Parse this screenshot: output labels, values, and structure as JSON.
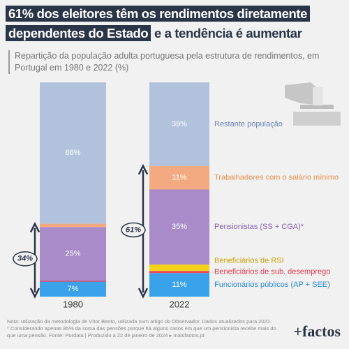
{
  "chart_data": {
    "type": "stacked-bar",
    "title": [
      "61% dos eleitores têm os rendimentos diretamente dependentes do Estado",
      "e a tendência é aumentar"
    ],
    "subtitle": "Repartição da população adulta portuguesa pela estrutura de rendimentos, em Portugal em 1980 e 2022 (%)",
    "categories": [
      "1980",
      "2022"
    ],
    "ylim": [
      0,
      100
    ],
    "series": [
      {
        "name": "Funcionários públicos (AP + SEE)",
        "color": "#3aa2ea",
        "text_color": "#2b8ad4",
        "values": [
          7,
          11
        ],
        "value_labels": [
          "7%",
          "11%"
        ]
      },
      {
        "name": "Beneficiários de sub. desemprego",
        "color": "#e8485a",
        "text_color": "#e03a4a",
        "values": [
          0.5,
          1
        ],
        "value_labels": [
          null,
          null
        ]
      },
      {
        "name": "Beneficiários de RSI",
        "color": "#f5d21a",
        "text_color": "#c9a000",
        "values": [
          0,
          3
        ],
        "value_labels": [
          null,
          null
        ]
      },
      {
        "name": "Pensionistas (SS + CGA)*",
        "color": "#a98bca",
        "text_color": "#8a5fb0",
        "values": [
          25,
          35
        ],
        "value_labels": [
          "25%",
          "35%"
        ]
      },
      {
        "name": "Trabalhadores com o salário mínimo",
        "color": "#f4aa80",
        "text_color": "#e8914c",
        "values": [
          1.5,
          11
        ],
        "value_labels": [
          null,
          "11%"
        ]
      },
      {
        "name": "Restante população",
        "color": "#b2c2dc",
        "text_color": "#6a86b8",
        "values": [
          66,
          39
        ],
        "value_labels": [
          "66%",
          "39%"
        ]
      }
    ],
    "annotations": [
      "34%",
      "61%"
    ],
    "notes": [
      "Nota: utilização da metodologia de Vítor Bento, utilizada num artigo do Observador. Dados atualizados para 2022.",
      "* Considerando apenas 85% da soma das pensões porque há alguns casos em que um pensionista recebe mais do que uma pensão. Fonte: Pordata | Produzido a 22 de janeiro de 2024 ▸ maisfactos.pt"
    ],
    "logo": "+factos"
  }
}
